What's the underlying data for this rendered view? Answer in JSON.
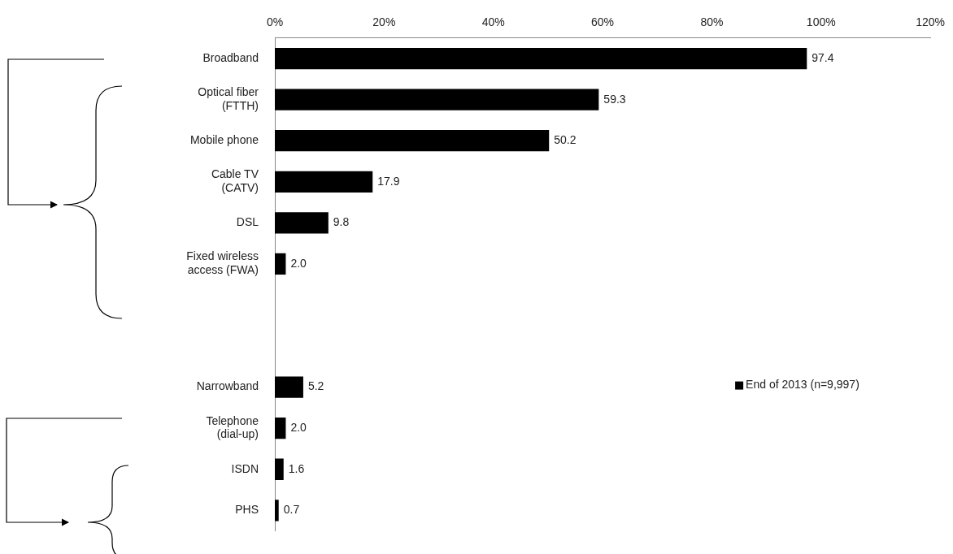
{
  "chart_data": {
    "type": "bar",
    "orientation": "horizontal",
    "categories": [
      "Broadband",
      "Optical fiber (FTTH)",
      "Mobile phone",
      "Cable TV (CATV)",
      "DSL",
      "Fixed wireless access (FWA)",
      null,
      null,
      "Narrowband",
      "Telephone (dial-up)",
      "ISDN",
      "PHS"
    ],
    "series": [
      {
        "name": "End of 2013 (n=9,997)",
        "color": "#000000",
        "values": [
          97.4,
          59.3,
          50.2,
          17.9,
          9.8,
          2.0,
          null,
          null,
          5.2,
          2.0,
          1.6,
          0.7
        ],
        "value_labels": [
          "97.4",
          "59.3",
          "50.2",
          "17.9",
          "9.8",
          "2.0",
          null,
          null,
          "5.2",
          "2.0",
          "1.6",
          "0.7"
        ]
      }
    ],
    "xlim": [
      0,
      120
    ],
    "xticks": [
      {
        "value": 0,
        "label": "0%"
      },
      {
        "value": 20,
        "label": "20%"
      },
      {
        "value": 40,
        "label": "40%"
      },
      {
        "value": 60,
        "label": "60%"
      },
      {
        "value": 80,
        "label": "80%"
      },
      {
        "value": 100,
        "label": "100%"
      },
      {
        "value": 120,
        "label": "120%"
      }
    ],
    "grid": false,
    "legend": "right"
  }
}
